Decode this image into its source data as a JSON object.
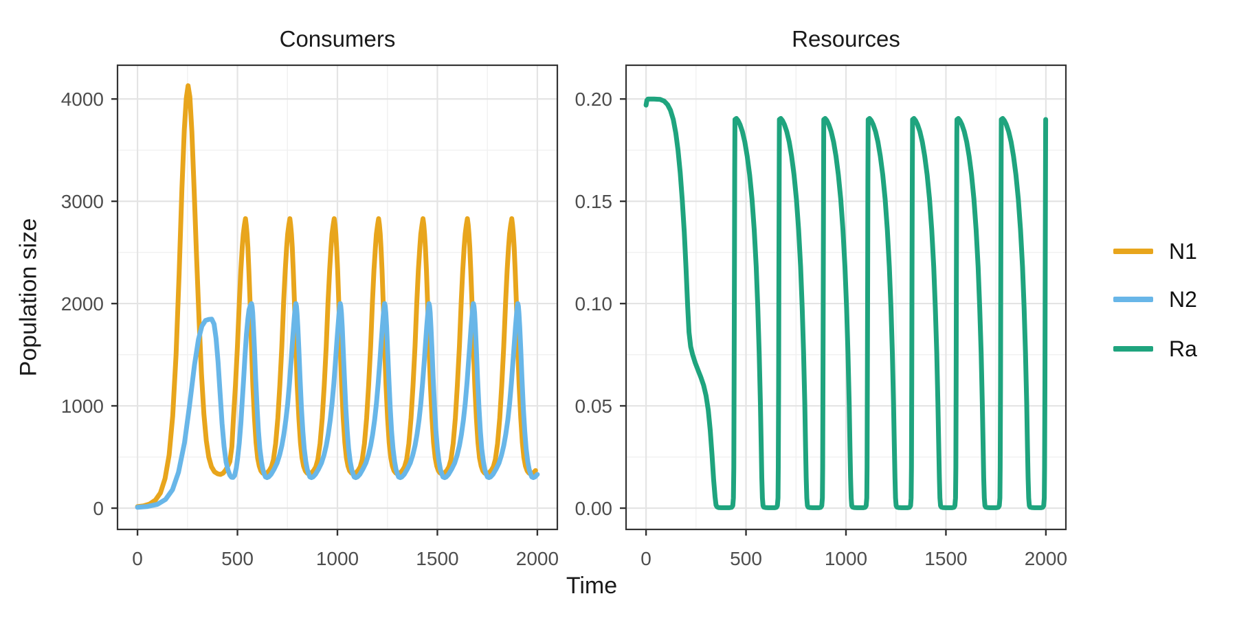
{
  "axes": {
    "x_title": "Time",
    "y_title": "Population size"
  },
  "legend": {
    "entries": [
      {
        "label": "N1",
        "color": "#E8A51C"
      },
      {
        "label": "N2",
        "color": "#68B6E8"
      },
      {
        "label": "Ra",
        "color": "#1FA47E"
      }
    ],
    "entry_centers_y": [
      366,
      436,
      508
    ]
  },
  "panels": [
    {
      "title": "Consumers"
    },
    {
      "title": "Resources"
    }
  ],
  "chart_data": [
    {
      "type": "line",
      "title": "Consumers",
      "xlabel": "Time",
      "ylabel": "Population size",
      "x": {
        "range": [
          -100,
          2100
        ],
        "data_max": 2000,
        "ticks": [
          0,
          500,
          1000,
          1500,
          2000
        ],
        "tick_labels": [
          "0",
          "500",
          "1000",
          "1500",
          "2000"
        ],
        "minor": [
          250,
          750,
          1250,
          1750
        ]
      },
      "y": {
        "range": [
          -208,
          4330
        ],
        "ticks": [
          0,
          1000,
          2000,
          3000,
          4000
        ],
        "tick_labels": [
          "0",
          "1000",
          "2000",
          "3000",
          "4000"
        ],
        "minor": [
          500,
          1500,
          2500,
          3500
        ]
      },
      "grid": true,
      "legend_position": "right",
      "series": [
        {
          "name": "N1",
          "color": "#E8A51C",
          "transient": [
            [
              0,
              15
            ],
            [
              30,
              22
            ],
            [
              60,
              40
            ],
            [
              90,
              80
            ],
            [
              115,
              150
            ],
            [
              138,
              290
            ],
            [
              158,
              520
            ],
            [
              176,
              900
            ],
            [
              193,
              1500
            ],
            [
              208,
              2280
            ],
            [
              222,
              3120
            ],
            [
              234,
              3700
            ],
            [
              244,
              4010
            ],
            [
              253,
              4130
            ],
            [
              262,
              4020
            ],
            [
              272,
              3680
            ],
            [
              283,
              3130
            ],
            [
              295,
              2480
            ],
            [
              308,
              1830
            ],
            [
              320,
              1310
            ],
            [
              332,
              920
            ],
            [
              344,
              660
            ],
            [
              356,
              500
            ],
            [
              370,
              405
            ],
            [
              385,
              355
            ],
            [
              402,
              335
            ],
            [
              415,
              330
            ],
            [
              428,
              342
            ],
            [
              440,
              370
            ],
            [
              452,
              412
            ],
            [
              462,
              455
            ],
            [
              472,
              600
            ],
            [
              480,
              880
            ],
            [
              490,
              1200
            ],
            [
              500,
              1580
            ],
            [
              509,
              2010
            ],
            [
              517,
              2330
            ],
            [
              524,
              2550
            ],
            [
              529,
              2680
            ],
            [
              535,
              2770
            ]
          ],
          "cycle": {
            "period": 222,
            "anchors_at": [
              540,
              762,
              984,
              1206,
              1428,
              1650,
              1872
            ],
            "rel_points": [
              [
                0,
                2830
              ],
              [
                4,
                2770
              ],
              [
                8,
                2680
              ],
              [
                12,
                2550
              ],
              [
                17,
                2330
              ],
              [
                23,
                2010
              ],
              [
                30,
                1580
              ],
              [
                37,
                1200
              ],
              [
                45,
                880
              ],
              [
                53,
                640
              ],
              [
                61,
                490
              ],
              [
                69,
                410
              ],
              [
                77,
                365
              ],
              [
                85,
                345
              ],
              [
                95,
                332
              ],
              [
                108,
                345
              ],
              [
                119,
                368
              ],
              [
                130,
                405
              ],
              [
                140,
                475
              ],
              [
                151,
                630
              ],
              [
                162,
                880
              ],
              [
                172,
                1200
              ],
              [
                182,
                1580
              ],
              [
                191,
                2010
              ],
              [
                199,
                2330
              ],
              [
                206,
                2550
              ],
              [
                211,
                2680
              ],
              [
                217,
                2770
              ]
            ]
          }
        },
        {
          "name": "N2",
          "color": "#68B6E8",
          "transient": [
            [
              0,
              8
            ],
            [
              50,
              16
            ],
            [
              100,
              38
            ],
            [
              140,
              85
            ],
            [
              175,
              180
            ],
            [
              205,
              350
            ],
            [
              235,
              640
            ],
            [
              260,
              1000
            ],
            [
              285,
              1400
            ],
            [
              305,
              1650
            ],
            [
              322,
              1780
            ],
            [
              340,
              1835
            ],
            [
              356,
              1845
            ],
            [
              371,
              1848
            ],
            [
              383,
              1800
            ],
            [
              393,
              1660
            ],
            [
              403,
              1430
            ],
            [
              413,
              1130
            ],
            [
              423,
              830
            ],
            [
              433,
              600
            ],
            [
              443,
              450
            ],
            [
              453,
              370
            ],
            [
              462,
              322
            ],
            [
              470,
              302
            ],
            [
              478,
              300
            ],
            [
              486,
              320
            ],
            [
              494,
              390
            ],
            [
              501,
              490
            ],
            [
              509,
              640
            ],
            [
              517,
              830
            ],
            [
              524,
              1050
            ],
            [
              531,
              1270
            ],
            [
              538,
              1500
            ],
            [
              545,
              1700
            ],
            [
              552,
              1850
            ],
            [
              558,
              1940
            ],
            [
              564,
              1980
            ]
          ],
          "cycle": {
            "period": 222,
            "anchors_at": [
              570,
              792,
              1014,
              1236,
              1458,
              1680,
              1902
            ],
            "rel_points": [
              [
                0,
                2000
              ],
              [
                3,
                1975
              ],
              [
                6,
                1910
              ],
              [
                10,
                1770
              ],
              [
                15,
                1550
              ],
              [
                21,
                1270
              ],
              [
                28,
                980
              ],
              [
                35,
                750
              ],
              [
                42,
                580
              ],
              [
                50,
                455
              ],
              [
                57,
                380
              ],
              [
                64,
                335
              ],
              [
                70,
                305
              ],
              [
                78,
                298
              ],
              [
                86,
                305
              ],
              [
                98,
                330
              ],
              [
                113,
                380
              ],
              [
                128,
                440
              ],
              [
                141,
                520
              ],
              [
                152,
                610
              ],
              [
                162,
                720
              ],
              [
                172,
                860
              ],
              [
                181,
                1020
              ],
              [
                190,
                1220
              ],
              [
                198,
                1430
              ],
              [
                205,
                1620
              ],
              [
                211,
                1780
              ],
              [
                216,
                1900
              ],
              [
                219,
                1960
              ]
            ]
          }
        }
      ]
    },
    {
      "type": "line",
      "title": "Resources",
      "xlabel": "Time",
      "ylabel": "",
      "x": {
        "range": [
          -100,
          2100
        ],
        "data_max": 2000,
        "ticks": [
          0,
          500,
          1000,
          1500,
          2000
        ],
        "tick_labels": [
          "0",
          "500",
          "1000",
          "1500",
          "2000"
        ],
        "minor": [
          250,
          750,
          1250,
          1750
        ]
      },
      "y": {
        "range": [
          -0.0104,
          0.2165
        ],
        "ticks": [
          0,
          0.05,
          0.1,
          0.15,
          0.2
        ],
        "tick_labels": [
          "0.00",
          "0.05",
          "0.10",
          "0.15",
          "0.20"
        ],
        "minor": [
          0.025,
          0.075,
          0.125,
          0.175
        ]
      },
      "grid": true,
      "series": [
        {
          "name": "Ra",
          "color": "#1FA47E",
          "transient": [
            [
              0,
              0.197
            ],
            [
              4,
              0.1993
            ],
            [
              10,
              0.2
            ],
            [
              40,
              0.2
            ],
            [
              70,
              0.1998
            ],
            [
              90,
              0.199
            ],
            [
              108,
              0.1972
            ],
            [
              122,
              0.1945
            ],
            [
              136,
              0.19
            ],
            [
              149,
              0.1833
            ],
            [
              160,
              0.175
            ],
            [
              171,
              0.164
            ],
            [
              181,
              0.151
            ],
            [
              191,
              0.135
            ],
            [
              200,
              0.117
            ],
            [
              208,
              0.099
            ],
            [
              215,
              0.086
            ],
            [
              223,
              0.079
            ],
            [
              233,
              0.075
            ],
            [
              246,
              0.071
            ],
            [
              260,
              0.0675
            ],
            [
              274,
              0.064
            ],
            [
              288,
              0.06
            ],
            [
              300,
              0.055
            ],
            [
              311,
              0.048
            ],
            [
              321,
              0.038
            ],
            [
              330,
              0.026
            ],
            [
              338,
              0.014
            ],
            [
              345,
              0.0055
            ],
            [
              350,
              0.0015
            ],
            [
              355,
              0.0006
            ],
            [
              362,
              0.0003
            ],
            [
              375,
              0.0002
            ],
            [
              395,
              0.0002
            ],
            [
              415,
              0.0002
            ],
            [
              428,
              0.0004
            ],
            [
              434,
              0.0012
            ],
            [
              437,
              0.005
            ],
            [
              439,
              0.02
            ],
            [
              440.5,
              0.06
            ],
            [
              442,
              0.115
            ],
            [
              443.5,
              0.165
            ],
            [
              444.5,
              0.185
            ]
          ],
          "cycle": {
            "period": 222,
            "anchors_at": [
              445,
              667,
              889,
              1111,
              1333,
              1555,
              1777,
              1999
            ],
            "rel_points": [
              [
                0,
                0.19
              ],
              [
                7,
                0.1905
              ],
              [
                15,
                0.1895
              ],
              [
                25,
                0.1875
              ],
              [
                37,
                0.184
              ],
              [
                49,
                0.179
              ],
              [
                61,
                0.172
              ],
              [
                73,
                0.163
              ],
              [
                85,
                0.151
              ],
              [
                96,
                0.136
              ],
              [
                106,
                0.118
              ],
              [
                114,
                0.098
              ],
              [
                121,
                0.076
              ],
              [
                127,
                0.051
              ],
              [
                131,
                0.03
              ],
              [
                134,
                0.015
              ],
              [
                137,
                0.005
              ],
              [
                140,
                0.0012
              ],
              [
                144,
                0.0005
              ],
              [
                152,
                0.0003
              ],
              [
                166,
                0.0002
              ],
              [
                182,
                0.0002
              ],
              [
                198,
                0.0002
              ],
              [
                207,
                0.0004
              ],
              [
                212,
                0.0012
              ],
              [
                215,
                0.005
              ],
              [
                216.5,
                0.02
              ],
              [
                218,
                0.06
              ],
              [
                219.5,
                0.115
              ],
              [
                220.8,
                0.16
              ],
              [
                221.6,
                0.182
              ]
            ]
          }
        }
      ]
    }
  ],
  "style": {
    "grid_major_color": "#E4E4E4",
    "grid_minor_color": "#F0F0F0",
    "panel_border_color": "#333333",
    "tick_color": "#333333",
    "tick_label_color": "#4d4d4d",
    "line_width": 7
  }
}
